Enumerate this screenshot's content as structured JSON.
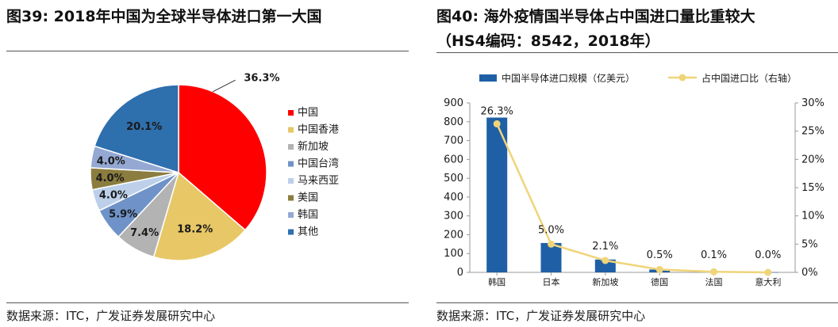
{
  "left": {
    "title": "图39: 2018年中国为全球半导体进口第一大国",
    "source": "数据来源：ITC，广发证券发展研究中心"
  },
  "right": {
    "title_line1": "图40: 海外疫情国半导体占中国进口量比重较大",
    "title_line2": "（HS4编码：8542，2018年）",
    "source": "数据来源：ITC，广发证券发展研究中心"
  },
  "chart_data": [
    {
      "type": "pie",
      "title": "",
      "legend_position": "right",
      "slices": [
        {
          "name": "中国",
          "value": 36.3,
          "label": "36.3%",
          "color": "#ff0000"
        },
        {
          "name": "中国香港",
          "value": 18.2,
          "label": "18.2%",
          "color": "#e8c766"
        },
        {
          "name": "新加坡",
          "value": 7.4,
          "label": "7.4%",
          "color": "#b3b3b3"
        },
        {
          "name": "中国台湾",
          "value": 5.9,
          "label": "5.9%",
          "color": "#6f93c8"
        },
        {
          "name": "马来西亚",
          "value": 4.0,
          "label": "4.0%",
          "color": "#bcd0ea"
        },
        {
          "name": "美国",
          "value": 4.0,
          "label": "4.0%",
          "color": "#8b7d3f"
        },
        {
          "name": "韩国",
          "value": 4.0,
          "label": "4.0%",
          "color": "#94a8d3"
        },
        {
          "name": "其他",
          "value": 20.1,
          "label": "20.1%",
          "color": "#2e6fad"
        }
      ]
    },
    {
      "type": "bar",
      "title": "",
      "legend_position": "top",
      "categories": [
        "韩国",
        "日本",
        "新加坡",
        "德国",
        "法国",
        "意大利"
      ],
      "series": [
        {
          "name": "中国半导体进口规模（亿美元）",
          "type": "bar",
          "axis": "left",
          "color": "#1f5fa6",
          "values": [
            822,
            156,
            68,
            15,
            3,
            1
          ]
        },
        {
          "name": "占中国进口比（右轴）",
          "type": "line",
          "axis": "right",
          "color": "#f0d47a",
          "values": [
            26.3,
            5.0,
            2.1,
            0.5,
            0.1,
            0.0
          ],
          "labels": [
            "26.3%",
            "5.0%",
            "2.1%",
            "0.5%",
            "0.1%",
            "0.0%"
          ]
        }
      ],
      "y_left": {
        "ylim": [
          0,
          900
        ],
        "ticks": [
          0,
          100,
          200,
          300,
          400,
          500,
          600,
          700,
          800,
          900
        ]
      },
      "y_right": {
        "ylim": [
          0,
          30
        ],
        "ticks": [
          0,
          5,
          10,
          15,
          20,
          25,
          30
        ],
        "tick_labels": [
          "0%",
          "5%",
          "10%",
          "15%",
          "20%",
          "25%",
          "30%"
        ]
      },
      "grid": false
    }
  ]
}
